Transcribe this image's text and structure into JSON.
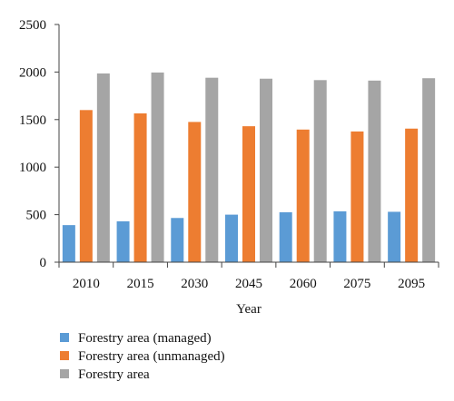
{
  "chart_data": {
    "type": "bar",
    "title": "",
    "xlabel": "Year",
    "ylabel": "",
    "ylim": [
      0,
      2500
    ],
    "yticks": [
      0,
      500,
      1000,
      1500,
      2000,
      2500
    ],
    "grid": false,
    "legend_position": "bottom-left",
    "categories": [
      "2010",
      "2015",
      "2030",
      "2045",
      "2060",
      "2075",
      "2095"
    ],
    "series": [
      {
        "name": "Forestry area (managed)",
        "color": "#5B9BD5",
        "values": [
          390,
          430,
          465,
          500,
          525,
          535,
          530
        ]
      },
      {
        "name": "Forestry area (unmanaged)",
        "color": "#ED7D31",
        "values": [
          1600,
          1565,
          1475,
          1430,
          1395,
          1375,
          1405
        ]
      },
      {
        "name": "Forestry area",
        "color": "#A5A5A5",
        "values": [
          1985,
          1995,
          1940,
          1930,
          1915,
          1910,
          1935
        ]
      }
    ]
  }
}
